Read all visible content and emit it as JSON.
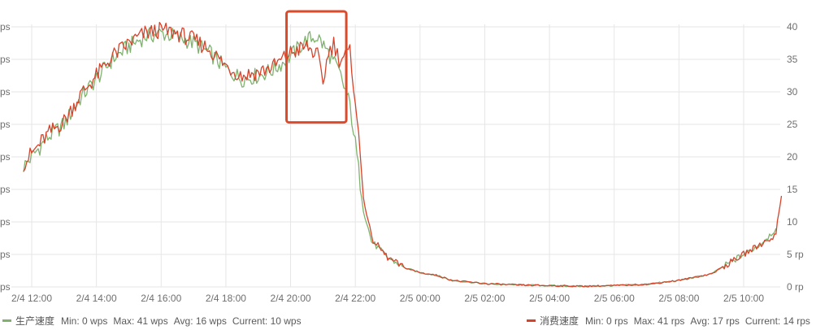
{
  "chart_data": {
    "type": "line",
    "x_range": [
      "2/4 11:40",
      "2/5 11:20"
    ],
    "x_ticks": [
      "2/4 12:00",
      "2/4 14:00",
      "2/4 16:00",
      "2/4 18:00",
      "2/4 20:00",
      "2/4 22:00",
      "2/5 00:00",
      "2/5 02:00",
      "2/5 04:00",
      "2/5 06:00",
      "2/5 08:00",
      "2/5 10:00"
    ],
    "y_left_ticks": [
      "ps",
      "ps",
      "ps",
      "ps",
      "ps",
      "ps",
      "ps",
      "ps",
      "ps",
      "ps"
    ],
    "y_right_ticks": [
      "0 rp",
      "5 rp",
      "10",
      "15",
      "20",
      "25",
      "30",
      "35",
      "40"
    ],
    "y_right_values": [
      0,
      5,
      10,
      15,
      20,
      25,
      30,
      35,
      40
    ],
    "ylim": [
      0,
      41.5
    ],
    "grid": true,
    "legend_position": "bottom",
    "series": [
      {
        "name": "生产速度",
        "color": "#7eb26d",
        "stats": {
          "min": "Min: 0 wps",
          "max": "Max: 41 wps",
          "avg": "Avg: 16 wps",
          "current": "Current: 10 wps"
        },
        "x": [
          "2/4 11:45",
          "2/4 12:30",
          "2/4 13:00",
          "2/4 13:30",
          "2/4 14:00",
          "2/4 14:30",
          "2/4 15:00",
          "2/4 15:30",
          "2/4 16:00",
          "2/4 16:30",
          "2/4 17:00",
          "2/4 17:30",
          "2/4 18:00",
          "2/4 18:30",
          "2/4 19:00",
          "2/4 19:30",
          "2/4 20:00",
          "2/4 20:30",
          "2/4 20:50",
          "2/4 21:10",
          "2/4 21:30",
          "2/4 21:50",
          "2/4 22:00",
          "2/4 22:15",
          "2/4 22:30",
          "2/4 23:00",
          "2/4 23:30",
          "2/5 00:00",
          "2/5 00:30",
          "2/5 01:00",
          "2/5 02:00",
          "2/5 03:00",
          "2/5 04:00",
          "2/5 05:00",
          "2/5 06:00",
          "2/5 07:00",
          "2/5 08:00",
          "2/5 09:00",
          "2/5 09:30",
          "2/5 10:00",
          "2/5 10:30",
          "2/5 11:00"
        ],
        "values": [
          18.5,
          23,
          25,
          29,
          32,
          35,
          37,
          38.5,
          39,
          38.5,
          37.5,
          36,
          33.5,
          32,
          32.5,
          33.5,
          35.5,
          38,
          38.5,
          36,
          33,
          28,
          22,
          12,
          7,
          4.5,
          3,
          2.2,
          1.8,
          1,
          0.5,
          0.3,
          0.2,
          0.1,
          0.2,
          0.4,
          1,
          2,
          3.5,
          5,
          6.5,
          9
        ]
      },
      {
        "name": "消费速度",
        "color": "#d6432b",
        "stats": {
          "min": "Min: 0 rps",
          "max": "Max: 41 rps",
          "avg": "Avg: 17 rps",
          "current": "Current: 14 rps"
        },
        "x": [
          "2/4 11:45",
          "2/4 12:30",
          "2/4 13:00",
          "2/4 13:30",
          "2/4 14:00",
          "2/4 14:30",
          "2/4 15:00",
          "2/4 15:30",
          "2/4 16:00",
          "2/4 16:30",
          "2/4 17:00",
          "2/4 17:30",
          "2/4 18:00",
          "2/4 18:30",
          "2/4 19:00",
          "2/4 19:30",
          "2/4 20:00",
          "2/4 20:30",
          "2/4 20:50",
          "2/4 21:00",
          "2/4 21:10",
          "2/4 21:20",
          "2/4 21:30",
          "2/4 21:50",
          "2/4 22:00",
          "2/4 22:15",
          "2/4 22:30",
          "2/4 23:00",
          "2/4 23:30",
          "2/5 00:00",
          "2/5 00:30",
          "2/5 01:00",
          "2/5 02:00",
          "2/5 03:00",
          "2/5 04:00",
          "2/5 05:00",
          "2/5 06:00",
          "2/5 07:00",
          "2/5 08:00",
          "2/5 09:00",
          "2/5 09:30",
          "2/5 10:00",
          "2/5 10:30",
          "2/5 11:00",
          "2/5 11:05",
          "2/5 11:10"
        ],
        "values": [
          19,
          23.5,
          25.5,
          29.5,
          32.5,
          35.5,
          37.5,
          39,
          39.5,
          39,
          38,
          36.5,
          34,
          32.5,
          33,
          34,
          36,
          37,
          35.5,
          31.5,
          36,
          37.5,
          35,
          36,
          29,
          14,
          7.5,
          4.5,
          3,
          2.2,
          1.8,
          1,
          0.5,
          0.3,
          0.2,
          0.1,
          0.2,
          0.4,
          1,
          2,
          3.5,
          5,
          6.5,
          8,
          11.5,
          14
        ]
      }
    ],
    "annotations": [
      {
        "type": "rectangle",
        "color": "#dd4a2a",
        "x_range": [
          "2/4 20:00",
          "2/4 22:30"
        ],
        "y_range": [
          25.3,
          41
        ]
      }
    ]
  }
}
